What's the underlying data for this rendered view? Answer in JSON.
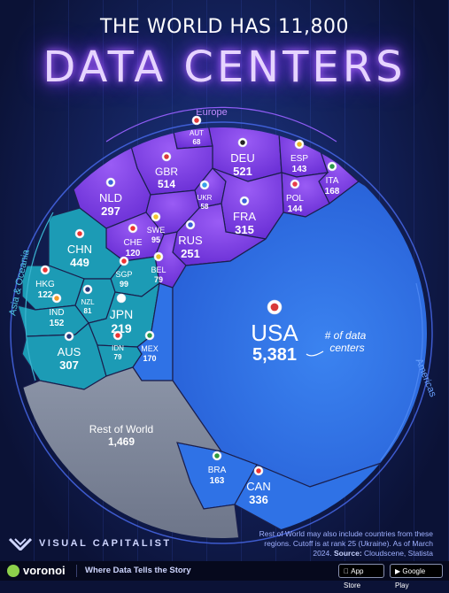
{
  "header": {
    "title_top": "THE WORLD HAS 11,800",
    "title_main": "DATA CENTERS"
  },
  "chart_data": {
    "type": "voronoi treemap",
    "groups": [
      {
        "name": "Europe",
        "countries": [
          {
            "code": "AUT",
            "value": 68
          },
          {
            "code": "DEU",
            "value": 521
          },
          {
            "code": "ESP",
            "value": 143
          },
          {
            "code": "GBR",
            "value": 514
          },
          {
            "code": "ITA",
            "value": 168
          },
          {
            "code": "NLD",
            "value": 297
          },
          {
            "code": "UKR",
            "value": 58
          },
          {
            "code": "POL",
            "value": 144
          },
          {
            "code": "SWE",
            "value": 95
          },
          {
            "code": "FRA",
            "value": 315
          },
          {
            "code": "CHE",
            "value": 120
          },
          {
            "code": "RUS",
            "value": 251
          },
          {
            "code": "BEL",
            "value": 79
          }
        ]
      },
      {
        "name": "Asia & Oceania",
        "countries": [
          {
            "code": "CHN",
            "value": 449
          },
          {
            "code": "HKG",
            "value": 122
          },
          {
            "code": "SGP",
            "value": 99
          },
          {
            "code": "NZL",
            "value": 81
          },
          {
            "code": "IND",
            "value": 152
          },
          {
            "code": "JPN",
            "value": 219
          },
          {
            "code": "AUS",
            "value": 307
          },
          {
            "code": "IDN",
            "value": 79
          }
        ]
      },
      {
        "name": "Americas",
        "countries": [
          {
            "code": "MEX",
            "value": 170
          },
          {
            "code": "USA",
            "value": 5381
          },
          {
            "code": "BRA",
            "value": 163
          },
          {
            "code": "CAN",
            "value": 336
          }
        ]
      },
      {
        "name": "Rest of World",
        "countries": [
          {
            "code": "Rest of World",
            "value": 1469
          }
        ]
      }
    ],
    "annotation": "# of data centers"
  },
  "footnote": {
    "text": "Rest of World may also include countries from these regions. Cutoff is at rank 25 (Ukraine). As of March 2024.",
    "source_label": "Source:",
    "source": "Cloudscene, Statista"
  },
  "brand": {
    "name": "VISUAL CAPITALIST"
  },
  "footer": {
    "app": "voronoi",
    "tagline": "Where Data Tells the Story",
    "app_store": "App Store",
    "google_play": "Google Play"
  },
  "colors": {
    "europe": "#7a3fe0",
    "asia": "#1c9bb5",
    "americas": "#2f72e6",
    "rest": "#7d879c"
  }
}
